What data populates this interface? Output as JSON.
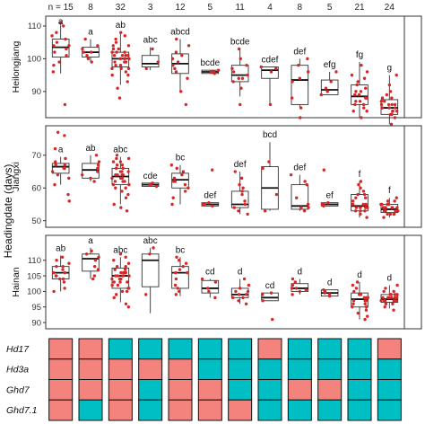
{
  "chart_data": {
    "type": "boxplot",
    "ylabel": "Headingdate (days)",
    "n_prefix": "n = ",
    "n": [
      15,
      8,
      32,
      3,
      12,
      5,
      11,
      4,
      8,
      5,
      21,
      24
    ],
    "colors": {
      "point": "#d62728",
      "box_stroke": "#333333",
      "genotype_a": "#f4837d",
      "genotype_b": "#00bfc4"
    },
    "panels": [
      {
        "name": "Heilongjiang",
        "ylim": [
          82,
          113
        ],
        "yticks": [
          90,
          100,
          110
        ],
        "groups": [
          {
            "q1": 100.5,
            "median": 103.5,
            "q3": 106,
            "lo": 95.5,
            "hi": 111,
            "sig": "a",
            "points": [
              86,
              96,
              99,
              101,
              102,
              103,
              104,
              104,
              105,
              106,
              107,
              108,
              110,
              111,
              98
            ]
          },
          {
            "q1": 100.5,
            "median": 102,
            "q3": 103.5,
            "lo": 99,
            "hi": 106,
            "sig": "a",
            "points": [
              99,
              100,
              101,
              102,
              102,
              103,
              104,
              106
            ]
          },
          {
            "q1": 97.5,
            "median": 100,
            "q3": 102,
            "lo": 92,
            "hi": 108,
            "sig": "ab",
            "points": [
              88,
              91,
              93,
              95,
              96,
              97,
              97,
              98,
              98,
              99,
              99,
              100,
              100,
              100,
              101,
              101,
              101,
              102,
              102,
              102,
              103,
              103,
              104,
              104,
              105,
              106,
              107,
              108,
              95,
              99,
              101,
              97
            ]
          },
          {
            "q1": 97.5,
            "median": 98.5,
            "q3": 101,
            "lo": 96.5,
            "hi": 103.5,
            "sig": "abc",
            "points": [
              97,
              99,
              103
            ]
          },
          {
            "q1": 95.5,
            "median": 98.5,
            "q3": 101.5,
            "lo": 90,
            "hi": 106,
            "sig": "abcd",
            "points": [
              86,
              90,
              94,
              96,
              97,
              98,
              99,
              100,
              101,
              102,
              104,
              106
            ]
          },
          {
            "q1": 95.5,
            "median": 96,
            "q3": 96.5,
            "lo": 95.5,
            "hi": 96.5,
            "sig": "bcde",
            "points": [
              95.5,
              96,
              96,
              96.5,
              96
            ]
          },
          {
            "q1": 93,
            "median": 95,
            "q3": 98,
            "lo": 88.5,
            "hi": 103,
            "sig": "bcde",
            "points": [
              86,
              91,
              93,
              94,
              95,
              96,
              97,
              98,
              100,
              103,
              94
            ]
          },
          {
            "q1": 94,
            "median": 96.5,
            "q3": 97.5,
            "lo": 86,
            "hi": 97.5,
            "sig": "cdef",
            "points": [
              86,
              96,
              97,
              97.5
            ]
          },
          {
            "q1": 86,
            "median": 93.5,
            "q3": 98,
            "lo": 85,
            "hi": 100,
            "sig": "def",
            "points": [
              82,
              85,
              88,
              94,
              96,
              98,
              100,
              93
            ]
          },
          {
            "q1": 89,
            "median": 90.5,
            "q3": 93.5,
            "lo": 89,
            "hi": 96,
            "sig": "efg",
            "points": [
              89,
              90,
              91,
              93,
              96
            ]
          },
          {
            "q1": 86,
            "median": 88.5,
            "q3": 92,
            "lo": 82,
            "hi": 99,
            "sig": "fg",
            "points": [
              82,
              84,
              85,
              86,
              87,
              88,
              88,
              89,
              90,
              91,
              92,
              94,
              95,
              96,
              98,
              86,
              89,
              93,
              84,
              87,
              90
            ]
          },
          {
            "q1": 83,
            "median": 85,
            "q3": 87.5,
            "lo": 80,
            "hi": 95,
            "sig": "g",
            "points": [
              80,
              82,
              83,
              83,
              84,
              84,
              85,
              85,
              85,
              86,
              86,
              86,
              87,
              87,
              88,
              89,
              90,
              92,
              95,
              84,
              85,
              86,
              83,
              88
            ]
          }
        ]
      },
      {
        "name": "Jiangxi",
        "ylim": [
          48,
          79
        ],
        "yticks": [
          50,
          60,
          70
        ],
        "groups": [
          {
            "q1": 64.5,
            "median": 66.5,
            "q3": 67.5,
            "lo": 61,
            "hi": 69.5,
            "sig": "a",
            "points": [
              56,
              58,
              61,
              64,
              65,
              66,
              66,
              67,
              67,
              68,
              69,
              72,
              76,
              77,
              63
            ]
          },
          {
            "q1": 63,
            "median": 65.5,
            "q3": 67.5,
            "lo": 62,
            "hi": 70,
            "sig": "ab",
            "points": [
              62,
              63,
              64,
              65,
              66,
              67,
              68,
              70
            ]
          },
          {
            "q1": 61,
            "median": 63.5,
            "q3": 66,
            "lo": 55,
            "hi": 69.5,
            "sig": "abc",
            "points": [
              53,
              54,
              55,
              57,
              58,
              59,
              60,
              61,
              61,
              62,
              62,
              63,
              63,
              63,
              64,
              64,
              64,
              65,
              65,
              65,
              66,
              66,
              67,
              67,
              68,
              68,
              69,
              69,
              70,
              60,
              62,
              64
            ]
          },
          {
            "q1": 60.5,
            "median": 61,
            "q3": 61.5,
            "lo": 60.5,
            "hi": 61.5,
            "sig": "cde",
            "points": [
              60.5,
              61,
              61.5
            ]
          },
          {
            "q1": 60,
            "median": 62.5,
            "q3": 64.5,
            "lo": 55,
            "hi": 67,
            "sig": "bc",
            "points": [
              55,
              57,
              59,
              60,
              61,
              62,
              63,
              64,
              65,
              66,
              67,
              62
            ]
          },
          {
            "q1": 54.5,
            "median": 55,
            "q3": 55.5,
            "lo": 54.5,
            "hi": 55.5,
            "sig": "def",
            "points": [
              54.5,
              55,
              55,
              55.5,
              65.5
            ]
          },
          {
            "q1": 54,
            "median": 55,
            "q3": 59,
            "lo": 52,
            "hi": 65,
            "sig": "def",
            "points": [
              52,
              53,
              54,
              55,
              56,
              58,
              59,
              60,
              61,
              63,
              65
            ]
          },
          {
            "q1": 53.5,
            "median": 60,
            "q3": 66.5,
            "lo": 53,
            "hi": 74,
            "sig": "bcd",
            "points": [
              53,
              58,
              66,
              68
            ]
          },
          {
            "q1": 53.5,
            "median": 54.5,
            "q3": 61,
            "lo": 53,
            "hi": 64,
            "sig": "def",
            "points": [
              53,
              54,
              54,
              55,
              57,
              61,
              62,
              64
            ]
          },
          {
            "q1": 54.5,
            "median": 55,
            "q3": 55.5,
            "lo": 54.5,
            "hi": 55.5,
            "sig": "ef",
            "points": [
              54.5,
              55,
              55,
              55.5,
              65.5
            ]
          },
          {
            "q1": 53,
            "median": 54.5,
            "q3": 58,
            "lo": 51,
            "hi": 62,
            "sig": "f",
            "points": [
              51,
              52,
              53,
              53,
              54,
              54,
              54,
              55,
              55,
              56,
              57,
              58,
              58,
              59,
              60,
              61,
              62,
              53,
              55,
              57,
              54
            ]
          },
          {
            "q1": 52.5,
            "median": 53.5,
            "q3": 55,
            "lo": 51,
            "hi": 57,
            "sig": "f",
            "points": [
              51,
              52,
              52,
              52,
              53,
              53,
              53,
              53,
              54,
              54,
              54,
              54,
              55,
              55,
              55,
              56,
              56,
              57,
              52,
              53,
              54,
              55,
              53,
              54
            ]
          }
        ]
      },
      {
        "name": "Hainan",
        "ylim": [
          88,
          118
        ],
        "yticks": [
          90,
          95,
          100,
          105,
          110
        ],
        "groups": [
          {
            "q1": 104,
            "median": 106,
            "q3": 108,
            "lo": 100,
            "hi": 111.5,
            "sig": "ab",
            "points": [
              100,
              101,
              103,
              104,
              105,
              105,
              106,
              106,
              107,
              108,
              108,
              109,
              110,
              111,
              104
            ]
          },
          {
            "q1": 106.5,
            "median": 110.5,
            "q3": 112,
            "lo": 104,
            "hi": 114,
            "sig": "a",
            "points": [
              104,
              105,
              107,
              108,
              110,
              111,
              112,
              113
            ]
          },
          {
            "q1": 101,
            "median": 105,
            "q3": 107.5,
            "lo": 96.5,
            "hi": 111,
            "sig": "abc",
            "points": [
              95,
              96,
              98,
              99,
              100,
              101,
              101,
              102,
              102,
              103,
              103,
              104,
              104,
              104,
              105,
              105,
              105,
              106,
              106,
              106,
              107,
              107,
              108,
              108,
              109,
              110,
              111,
              112,
              100,
              103,
              105,
              106
            ]
          },
          {
            "q1": 101.5,
            "median": 110,
            "q3": 112,
            "lo": 93,
            "hi": 114,
            "sig": "abc",
            "points": [
              99,
              112,
              114
            ]
          },
          {
            "q1": 101,
            "median": 106,
            "q3": 108,
            "lo": 98.5,
            "hi": 111,
            "sig": "bc",
            "points": [
              99,
              100,
              101,
              102,
              104,
              106,
              107,
              108,
              109,
              110,
              111,
              106
            ]
          },
          {
            "q1": 99.5,
            "median": 101,
            "q3": 103.5,
            "lo": 98,
            "hi": 104,
            "sig": "cd",
            "points": [
              98,
              100,
              101,
              103,
              104
            ]
          },
          {
            "q1": 98,
            "median": 99,
            "q3": 101,
            "lo": 96,
            "hi": 104,
            "sig": "d",
            "points": [
              96,
              97,
              98,
              99,
              99,
              100,
              101,
              102,
              104,
              98,
              100
            ]
          },
          {
            "q1": 97,
            "median": 98,
            "q3": 99.5,
            "lo": 97,
            "hi": 99.5,
            "sig": "cd",
            "points": [
              91,
              97,
              99,
              99.5
            ]
          },
          {
            "q1": 100,
            "median": 101,
            "q3": 102.5,
            "lo": 99,
            "hi": 104,
            "sig": "d",
            "points": [
              99,
              100,
              101,
              101,
              102,
              103,
              104,
              100.5
            ]
          },
          {
            "q1": 98.5,
            "median": 99.5,
            "q3": 100.5,
            "lo": 98.5,
            "hi": 100.5,
            "sig": "d",
            "points": [
              98.5,
              99,
              100,
              100.5,
              99.5
            ]
          },
          {
            "q1": 95,
            "median": 97.5,
            "q3": 99.5,
            "lo": 91,
            "hi": 103,
            "sig": "d",
            "points": [
              91,
              92,
              93,
              94,
              95,
              96,
              96,
              97,
              97,
              98,
              98,
              99,
              99,
              100,
              101,
              102,
              103,
              95,
              97,
              99,
              98
            ]
          },
          {
            "q1": 96.5,
            "median": 97.5,
            "q3": 99,
            "lo": 94.5,
            "hi": 102,
            "sig": "d",
            "points": [
              94,
              95,
              96,
              96,
              97,
              97,
              97,
              98,
              98,
              98,
              98,
              99,
              99,
              99,
              100,
              100,
              101,
              102,
              96,
              97,
              98,
              99,
              97,
              98
            ]
          }
        ]
      }
    ],
    "genotype": {
      "genes": [
        "Hd17",
        "Hd3a",
        "Ghd7",
        "Ghd7.1"
      ],
      "groups": [
        [
          "a",
          "a",
          "a",
          "a"
        ],
        [
          "a",
          "a",
          "a",
          "b"
        ],
        [
          "b",
          "a",
          "a",
          "a"
        ],
        [
          "b",
          "a",
          "b",
          "b"
        ],
        [
          "b",
          "a",
          "a",
          "a"
        ],
        [
          "b",
          "b",
          "a",
          "a"
        ],
        [
          "b",
          "b",
          "b",
          "a"
        ],
        [
          "a",
          "b",
          "b",
          "b"
        ],
        [
          "b",
          "b",
          "a",
          "b"
        ],
        [
          "b",
          "b",
          "a",
          "b"
        ],
        [
          "b",
          "b",
          "b",
          "b"
        ],
        [
          "a",
          "b",
          "b",
          "b"
        ]
      ]
    }
  }
}
